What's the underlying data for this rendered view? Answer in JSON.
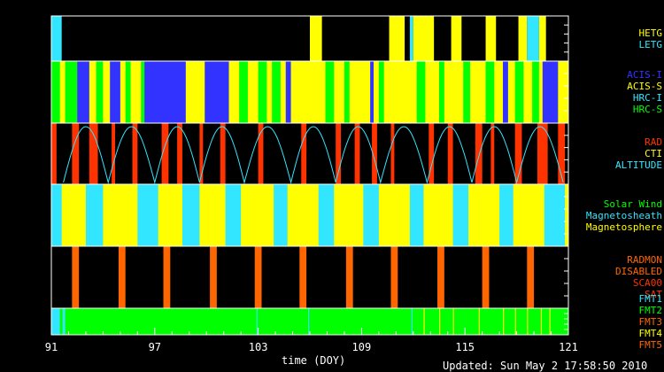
{
  "chart_data": {
    "type": "timeline",
    "xlabel": "time (DOY)",
    "xlim": [
      91,
      121
    ],
    "x_ticks": [
      "91",
      "97",
      "103",
      "109",
      "115",
      "121"
    ],
    "updated_text": "Updated: Sun May  2 17:58:50 2010",
    "panels": [
      {
        "id": "grating",
        "legend": [
          {
            "label": "HETG",
            "color": "#ffff00"
          },
          {
            "label": "LETG",
            "color": "#33e6ff"
          }
        ],
        "background": "#000000",
        "segments": [
          {
            "start": 91.0,
            "end": 91.6,
            "color": "#33e6ff"
          },
          {
            "start": 106.0,
            "end": 106.7,
            "color": "#ffff00"
          },
          {
            "start": 110.6,
            "end": 111.5,
            "color": "#ffff00"
          },
          {
            "start": 111.8,
            "end": 112.0,
            "color": "#33e6ff"
          },
          {
            "start": 112.0,
            "end": 113.2,
            "color": "#ffff00"
          },
          {
            "start": 114.2,
            "end": 114.8,
            "color": "#ffff00"
          },
          {
            "start": 116.2,
            "end": 116.8,
            "color": "#ffff00"
          },
          {
            "start": 118.1,
            "end": 118.6,
            "color": "#ffff00"
          },
          {
            "start": 118.6,
            "end": 119.3,
            "color": "#33e6ff"
          },
          {
            "start": 119.3,
            "end": 119.7,
            "color": "#ffff00"
          }
        ]
      },
      {
        "id": "instrument",
        "legend": [
          {
            "label": "ACIS-I",
            "color": "#3333ff"
          },
          {
            "label": "ACIS-S",
            "color": "#ffff00"
          },
          {
            "label": "HRC-I",
            "color": "#33e6ff"
          },
          {
            "label": "HRC-S",
            "color": "#00ff00"
          }
        ],
        "background": "#ffff00",
        "segments": [
          {
            "start": 91.0,
            "end": 91.5,
            "color": "#00ff00"
          },
          {
            "start": 91.8,
            "end": 92.5,
            "color": "#00ff00"
          },
          {
            "start": 92.5,
            "end": 93.2,
            "color": "#3333ff"
          },
          {
            "start": 93.6,
            "end": 94.0,
            "color": "#00ff00"
          },
          {
            "start": 94.4,
            "end": 95.0,
            "color": "#3333ff"
          },
          {
            "start": 95.3,
            "end": 95.6,
            "color": "#00ff00"
          },
          {
            "start": 96.2,
            "end": 96.4,
            "color": "#00ff00"
          },
          {
            "start": 96.4,
            "end": 98.8,
            "color": "#3333ff"
          },
          {
            "start": 99.9,
            "end": 101.3,
            "color": "#3333ff"
          },
          {
            "start": 101.9,
            "end": 102.4,
            "color": "#00ff00"
          },
          {
            "start": 103.0,
            "end": 103.5,
            "color": "#00ff00"
          },
          {
            "start": 103.8,
            "end": 104.3,
            "color": "#00ff00"
          },
          {
            "start": 104.6,
            "end": 104.9,
            "color": "#3333ff"
          },
          {
            "start": 106.9,
            "end": 107.4,
            "color": "#00ff00"
          },
          {
            "start": 108.0,
            "end": 108.3,
            "color": "#00ff00"
          },
          {
            "start": 109.5,
            "end": 109.7,
            "color": "#3333ff"
          },
          {
            "start": 110.0,
            "end": 110.3,
            "color": "#00ff00"
          },
          {
            "start": 112.2,
            "end": 112.7,
            "color": "#00ff00"
          },
          {
            "start": 113.5,
            "end": 113.8,
            "color": "#00ff00"
          },
          {
            "start": 114.9,
            "end": 115.3,
            "color": "#00ff00"
          },
          {
            "start": 116.2,
            "end": 116.7,
            "color": "#00ff00"
          },
          {
            "start": 117.2,
            "end": 117.5,
            "color": "#3333ff"
          },
          {
            "start": 117.9,
            "end": 118.4,
            "color": "#00ff00"
          },
          {
            "start": 118.9,
            "end": 119.3,
            "color": "#00ff00"
          },
          {
            "start": 119.5,
            "end": 120.4,
            "color": "#3333ff"
          }
        ]
      },
      {
        "id": "radiation",
        "legend": [
          {
            "label": "RAD",
            "color": "#ff3300"
          },
          {
            "label": "CTI",
            "color": "#ffff00"
          },
          {
            "label": "ALTITUDE",
            "color": "#33e6ff"
          }
        ],
        "background": "#000000",
        "segments": [
          {
            "start": 91.0,
            "end": 91.3,
            "color": "#ff3300"
          },
          {
            "start": 92.2,
            "end": 92.6,
            "color": "#ff3300"
          },
          {
            "start": 93.2,
            "end": 93.7,
            "color": "#ff3300"
          },
          {
            "start": 94.5,
            "end": 94.7,
            "color": "#ff3300"
          },
          {
            "start": 95.7,
            "end": 96.0,
            "color": "#ff3300"
          },
          {
            "start": 97.4,
            "end": 97.8,
            "color": "#ff3300"
          },
          {
            "start": 98.3,
            "end": 98.6,
            "color": "#ff3300"
          },
          {
            "start": 99.6,
            "end": 99.8,
            "color": "#ff3300"
          },
          {
            "start": 100.8,
            "end": 101.1,
            "color": "#ff3300"
          },
          {
            "start": 103.0,
            "end": 103.3,
            "color": "#ff3300"
          },
          {
            "start": 105.5,
            "end": 105.8,
            "color": "#ff3300"
          },
          {
            "start": 107.5,
            "end": 107.8,
            "color": "#ff3300"
          },
          {
            "start": 108.6,
            "end": 108.9,
            "color": "#ff3300"
          },
          {
            "start": 109.6,
            "end": 109.9,
            "color": "#ff3300"
          },
          {
            "start": 110.7,
            "end": 110.9,
            "color": "#ff3300"
          },
          {
            "start": 112.9,
            "end": 113.2,
            "color": "#ff3300"
          },
          {
            "start": 114.0,
            "end": 114.3,
            "color": "#ff3300"
          },
          {
            "start": 115.6,
            "end": 116.0,
            "color": "#ff3300"
          },
          {
            "start": 116.5,
            "end": 116.7,
            "color": "#ff3300"
          },
          {
            "start": 117.9,
            "end": 118.3,
            "color": "#ff3300"
          },
          {
            "start": 119.2,
            "end": 119.8,
            "color": "#ff3300"
          },
          {
            "start": 120.4,
            "end": 120.8,
            "color": "#ff3300"
          }
        ],
        "altitude_perigees": [
          91.7,
          94.3,
          97.0,
          99.6,
          102.2,
          104.9,
          107.5,
          110.1,
          112.8,
          115.4,
          118.0,
          120.7
        ],
        "altitude_color": "#33e6ff"
      },
      {
        "id": "region",
        "legend": [
          {
            "label": "Solar Wind",
            "color": "#00ff00"
          },
          {
            "label": "Magnetosheath",
            "color": "#33e6ff"
          },
          {
            "label": "Magnetosphere",
            "color": "#ffff00"
          }
        ],
        "background": "#ffff00",
        "segments": [
          {
            "start": 91.0,
            "end": 91.6,
            "color": "#33e6ff"
          },
          {
            "start": 93.0,
            "end": 94.0,
            "color": "#33e6ff"
          },
          {
            "start": 96.0,
            "end": 97.2,
            "color": "#33e6ff"
          },
          {
            "start": 98.6,
            "end": 99.6,
            "color": "#33e6ff"
          },
          {
            "start": 101.1,
            "end": 102.0,
            "color": "#33e6ff"
          },
          {
            "start": 103.9,
            "end": 104.7,
            "color": "#33e6ff"
          },
          {
            "start": 106.5,
            "end": 107.4,
            "color": "#33e6ff"
          },
          {
            "start": 109.1,
            "end": 110.0,
            "color": "#33e6ff"
          },
          {
            "start": 111.8,
            "end": 112.6,
            "color": "#33e6ff"
          },
          {
            "start": 114.3,
            "end": 115.2,
            "color": "#33e6ff"
          },
          {
            "start": 117.0,
            "end": 117.8,
            "color": "#33e6ff"
          },
          {
            "start": 119.6,
            "end": 120.8,
            "color": "#33e6ff"
          }
        ]
      },
      {
        "id": "radmon",
        "legend": [
          {
            "label": "RADMON",
            "color": "#ff6600"
          },
          {
            "label": "DISABLED",
            "color": "#ff6600"
          },
          {
            "label": "SCA00",
            "color": "#ff3300"
          },
          {
            "label": "SAT",
            "color": "#ff3300"
          }
        ],
        "background": "#000000",
        "segments": [
          {
            "start": 92.2,
            "end": 92.6,
            "color": "#ff6600"
          },
          {
            "start": 94.9,
            "end": 95.3,
            "color": "#ff6600"
          },
          {
            "start": 97.5,
            "end": 97.9,
            "color": "#ff6600"
          },
          {
            "start": 100.2,
            "end": 100.6,
            "color": "#ff6600"
          },
          {
            "start": 102.8,
            "end": 103.2,
            "color": "#ff6600"
          },
          {
            "start": 105.4,
            "end": 105.8,
            "color": "#ff6600"
          },
          {
            "start": 108.1,
            "end": 108.5,
            "color": "#ff6600"
          },
          {
            "start": 110.7,
            "end": 111.1,
            "color": "#ff6600"
          },
          {
            "start": 113.4,
            "end": 113.8,
            "color": "#ff6600"
          },
          {
            "start": 116.0,
            "end": 116.4,
            "color": "#ff6600"
          },
          {
            "start": 118.6,
            "end": 119.0,
            "color": "#ff6600"
          }
        ]
      },
      {
        "id": "format",
        "legend": [
          {
            "label": "FMT1",
            "color": "#33e6ff"
          },
          {
            "label": "FMT2",
            "color": "#00ff00"
          },
          {
            "label": "FMT3",
            "color": "#ff6600"
          },
          {
            "label": "FMT4",
            "color": "#ffff00"
          },
          {
            "label": "FMT5",
            "color": "#ff6600"
          }
        ],
        "background": "#00ff00",
        "segments": [
          {
            "start": 91.0,
            "end": 91.5,
            "color": "#33e6ff"
          },
          {
            "start": 91.5,
            "end": 91.65,
            "color": "#00ff00"
          },
          {
            "start": 91.65,
            "end": 91.8,
            "color": "#33e6ff"
          }
        ],
        "ticks": [
          {
            "x": 102.9,
            "color": "#33e6ff"
          },
          {
            "x": 105.9,
            "color": "#33e6ff"
          },
          {
            "x": 111.9,
            "color": "#33e6ff"
          },
          {
            "x": 112.6,
            "color": "#ffff00"
          },
          {
            "x": 113.5,
            "color": "#ffff00"
          },
          {
            "x": 114.3,
            "color": "#ffff00"
          },
          {
            "x": 115.8,
            "color": "#ffff00"
          },
          {
            "x": 117.2,
            "color": "#ffff00"
          },
          {
            "x": 117.9,
            "color": "#ffff00"
          },
          {
            "x": 118.6,
            "color": "#ffff00"
          },
          {
            "x": 119.4,
            "color": "#ffff00"
          },
          {
            "x": 119.9,
            "color": "#ffff00"
          }
        ]
      }
    ]
  }
}
